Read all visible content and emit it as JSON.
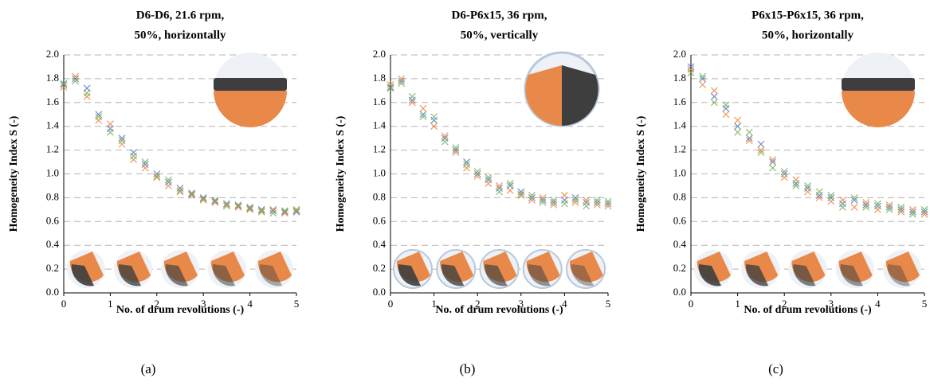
{
  "chart_data": [
    {
      "type": "scatter",
      "title": [
        "D6-D6, 21.6 rpm,",
        "50%, horizontally"
      ],
      "panel_label": "(a)",
      "xlabel": "No. of drum revolutions (-)",
      "ylabel": "Homogeneity Index S (-)",
      "xlim": [
        0,
        5
      ],
      "ylim": [
        0,
        2
      ],
      "xticks": [
        0,
        1,
        2,
        3,
        4,
        5
      ],
      "yticks": [
        {
          "value": 0,
          "label": "0.0"
        },
        0.2,
        0.4,
        0.6,
        0.8,
        {
          "value": 1,
          "label": "1.0"
        },
        1.2,
        1.4,
        1.6,
        1.8,
        {
          "value": 2,
          "label": "2.0"
        }
      ],
      "grid": true,
      "x": [
        0,
        0.25,
        0.5,
        0.75,
        1,
        1.25,
        1.5,
        1.75,
        2,
        2.25,
        2.5,
        2.75,
        3,
        3.25,
        3.5,
        3.75,
        4,
        4.25,
        4.5,
        4.75,
        5
      ],
      "series": [
        {
          "color": "#4472c4",
          "values": [
            1.75,
            1.8,
            1.72,
            1.5,
            1.38,
            1.3,
            1.18,
            1.08,
            1.0,
            0.93,
            0.88,
            0.83,
            0.8,
            0.77,
            0.75,
            0.73,
            0.71,
            0.7,
            0.69,
            0.68,
            0.68
          ]
        },
        {
          "color": "#ed7d31",
          "values": [
            1.73,
            1.82,
            1.65,
            1.45,
            1.42,
            1.25,
            1.12,
            1.05,
            0.97,
            0.9,
            0.86,
            0.82,
            0.78,
            0.76,
            0.74,
            0.72,
            0.7,
            0.69,
            0.7,
            0.67,
            0.69
          ]
        },
        {
          "color": "#70ad47",
          "values": [
            1.76,
            1.78,
            1.68,
            1.48,
            1.35,
            1.28,
            1.15,
            1.1,
            0.98,
            0.95,
            0.85,
            0.84,
            0.79,
            0.78,
            0.73,
            0.74,
            0.72,
            0.68,
            0.67,
            0.69,
            0.7
          ]
        }
      ]
    },
    {
      "type": "scatter",
      "title": [
        "D6-P6x15, 36 rpm,",
        "50%, vertically"
      ],
      "panel_label": "(b)",
      "xlabel": "No. of drum revolutions (-)",
      "ylabel": "Homogeneity Index S (-)",
      "xlim": [
        0,
        5
      ],
      "ylim": [
        0,
        2
      ],
      "xticks": [
        0,
        1,
        2,
        3,
        4,
        5
      ],
      "yticks": [
        {
          "value": 0,
          "label": "0.0"
        },
        0.2,
        0.4,
        0.6,
        0.8,
        {
          "value": 1,
          "label": "1.0"
        },
        1.2,
        1.4,
        1.6,
        1.8,
        {
          "value": 2,
          "label": "2.0"
        }
      ],
      "grid": true,
      "x": [
        0,
        0.25,
        0.5,
        0.75,
        1,
        1.25,
        1.5,
        1.75,
        2,
        2.25,
        2.5,
        2.75,
        3,
        3.25,
        3.5,
        3.75,
        4,
        4.25,
        4.5,
        4.75,
        5
      ],
      "series": [
        {
          "color": "#4472c4",
          "values": [
            1.73,
            1.78,
            1.62,
            1.5,
            1.45,
            1.3,
            1.2,
            1.1,
            1.0,
            0.95,
            0.88,
            0.9,
            0.85,
            0.8,
            0.78,
            0.76,
            0.78,
            0.8,
            0.76,
            0.76,
            0.75
          ]
        },
        {
          "color": "#ed7d31",
          "values": [
            1.75,
            1.8,
            1.6,
            1.55,
            1.4,
            1.32,
            1.18,
            1.05,
            0.98,
            0.92,
            0.9,
            0.86,
            0.82,
            0.78,
            0.8,
            0.74,
            0.82,
            0.76,
            0.78,
            0.74,
            0.73
          ]
        },
        {
          "color": "#70ad47",
          "values": [
            1.72,
            1.76,
            1.65,
            1.48,
            1.48,
            1.27,
            1.22,
            1.08,
            1.02,
            0.97,
            0.85,
            0.92,
            0.83,
            0.82,
            0.76,
            0.78,
            0.75,
            0.78,
            0.73,
            0.78,
            0.77
          ]
        }
      ]
    },
    {
      "type": "scatter",
      "title": [
        "P6x15-P6x15, 36 rpm,",
        "50%, horizontally"
      ],
      "panel_label": "(c)",
      "xlabel": "No. of drum revolutions (-)",
      "ylabel": "Homogeneity Index S (-)",
      "xlim": [
        0,
        5
      ],
      "ylim": [
        0,
        2
      ],
      "xticks": [
        0,
        1,
        2,
        3,
        4,
        5
      ],
      "yticks": [
        {
          "value": 0,
          "label": "0.0"
        },
        0.2,
        0.4,
        0.6,
        0.8,
        {
          "value": 1,
          "label": "1.0"
        },
        1.2,
        1.4,
        1.6,
        1.8,
        {
          "value": 2,
          "label": "2.0"
        }
      ],
      "grid": true,
      "x": [
        0,
        0.25,
        0.5,
        0.75,
        1,
        1.25,
        1.5,
        1.75,
        2,
        2.25,
        2.5,
        2.75,
        3,
        3.25,
        3.5,
        3.75,
        4,
        4.25,
        4.5,
        4.75,
        5
      ],
      "series": [
        {
          "color": "#4472c4",
          "values": [
            1.9,
            1.8,
            1.65,
            1.55,
            1.4,
            1.3,
            1.25,
            1.1,
            1.0,
            0.92,
            0.88,
            0.82,
            0.8,
            0.75,
            0.78,
            0.74,
            0.73,
            0.72,
            0.7,
            0.68,
            0.68
          ]
        },
        {
          "color": "#ed7d31",
          "values": [
            1.88,
            1.75,
            1.7,
            1.5,
            1.45,
            1.28,
            1.2,
            1.12,
            0.97,
            0.95,
            0.85,
            0.8,
            0.77,
            0.78,
            0.72,
            0.76,
            0.7,
            0.74,
            0.68,
            0.7,
            0.66
          ]
        },
        {
          "color": "#70ad47",
          "values": [
            1.85,
            1.82,
            1.6,
            1.58,
            1.35,
            1.35,
            1.18,
            1.05,
            1.02,
            0.9,
            0.9,
            0.85,
            0.82,
            0.72,
            0.8,
            0.72,
            0.75,
            0.7,
            0.72,
            0.66,
            0.7
          ]
        }
      ]
    }
  ]
}
